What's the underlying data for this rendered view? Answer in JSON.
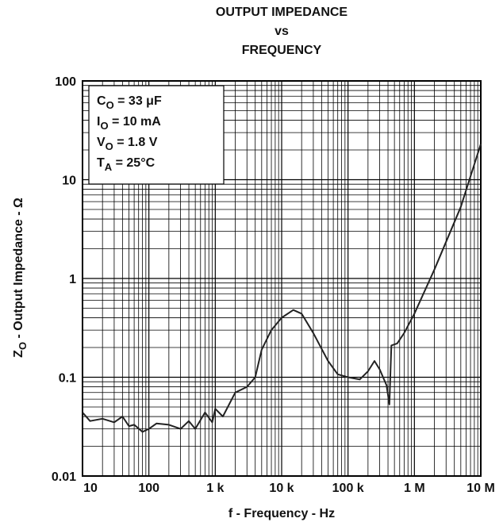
{
  "chart_data": {
    "type": "line",
    "title": [
      "OUTPUT IMPEDANCE",
      "vs",
      "FREQUENCY"
    ],
    "xlabel": "f - Frequency - Hz",
    "ylabel": {
      "main": "Z",
      "sub": "O",
      "rest": " - Output Impedance - Ω"
    },
    "annotations": [
      {
        "main": "C",
        "sub": "O",
        "rest": " = 33 μF"
      },
      {
        "main": "I",
        "sub": "O",
        "rest": " = 10 mA"
      },
      {
        "main": "V",
        "sub": "O",
        "rest": " = 1.8 V"
      },
      {
        "main": "T",
        "sub": "A",
        "rest": " = 25°C"
      }
    ],
    "log_x": true,
    "log_y": true,
    "grid": true,
    "xlim": [
      10,
      10000000
    ],
    "xticks": [
      10,
      100,
      {
        "value": 1000,
        "label": "1 k"
      },
      {
        "value": 10000,
        "label": "10 k"
      },
      {
        "value": 100000,
        "label": "100 k"
      },
      {
        "value": 1000000,
        "label": "1 M"
      },
      {
        "value": 10000000,
        "label": "10 M"
      }
    ],
    "ylim": [
      0.01,
      100
    ],
    "yticks": [
      0.01,
      0.1,
      1,
      10,
      100
    ],
    "series": [
      {
        "color": "#222222",
        "x": [
          10,
          13,
          20,
          30,
          40,
          50,
          60,
          80,
          100,
          130,
          200,
          300,
          400,
          500,
          700,
          900,
          1000,
          1300,
          2000,
          3000,
          4000,
          5000,
          7000,
          10000,
          15000,
          20000,
          30000,
          50000,
          70000,
          100000,
          150000,
          200000,
          250000,
          300000,
          380000,
          420000,
          450000,
          550000,
          700000,
          1000000,
          2000000,
          5000000,
          10000000
        ],
        "y": [
          0.044,
          0.036,
          0.038,
          0.035,
          0.04,
          0.032,
          0.033,
          0.028,
          0.03,
          0.034,
          0.033,
          0.03,
          0.036,
          0.03,
          0.044,
          0.035,
          0.048,
          0.04,
          0.07,
          0.08,
          0.1,
          0.19,
          0.3,
          0.4,
          0.48,
          0.44,
          0.28,
          0.146,
          0.107,
          0.1,
          0.095,
          0.115,
          0.146,
          0.12,
          0.083,
          0.053,
          0.21,
          0.22,
          0.28,
          0.44,
          1.23,
          5.3,
          23
        ]
      }
    ]
  }
}
